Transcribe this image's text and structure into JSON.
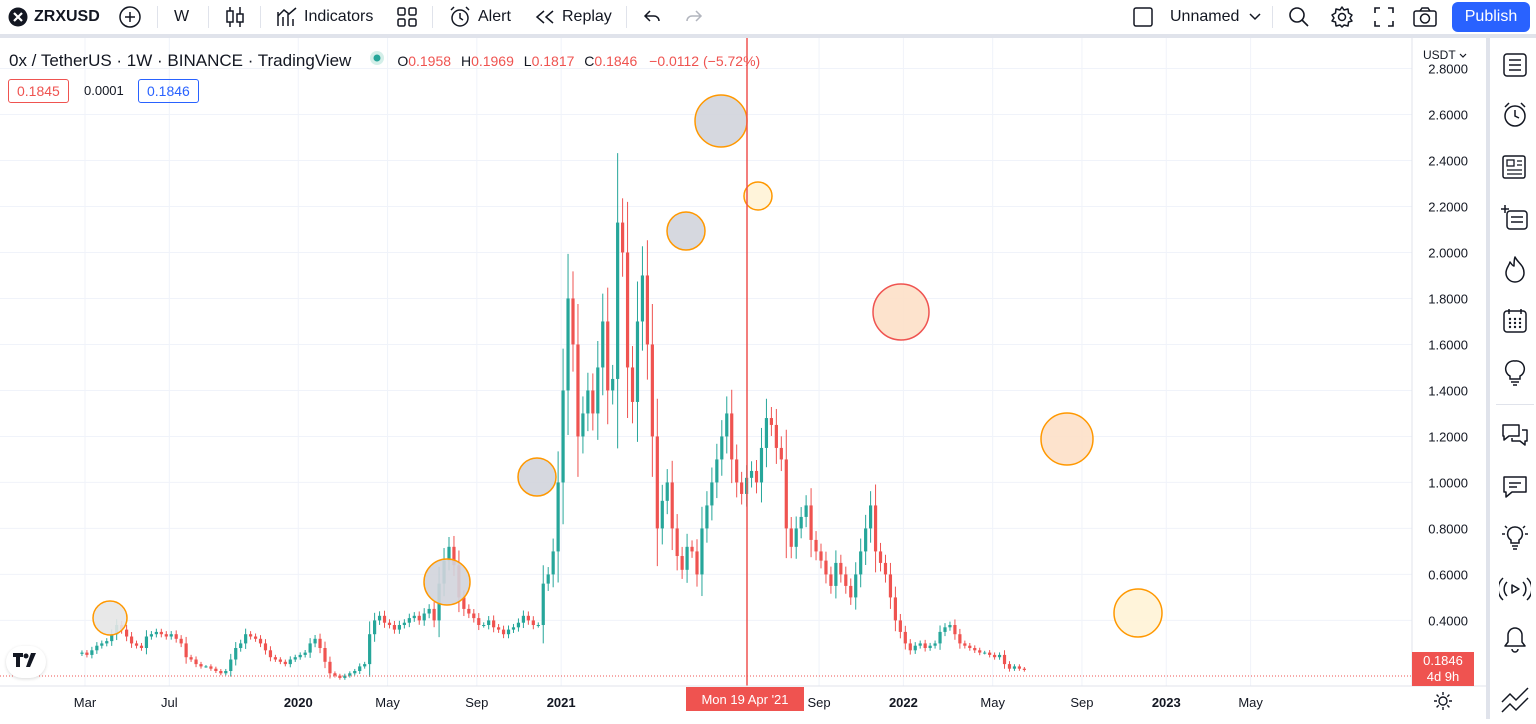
{
  "toolbar": {
    "symbol": "ZRXUSD",
    "interval": "W",
    "indicators_label": "Indicators",
    "alert_label": "Alert",
    "replay_label": "Replay",
    "layout_name": "Unnamed",
    "publish_label": "Publish"
  },
  "legend": {
    "title": "0x / TetherUS · 1W · BINANCE · TradingView",
    "open_label": "O",
    "open_value": "0.1958",
    "high_label": "H",
    "high_value": "0.1969",
    "low_label": "L",
    "low_value": "0.1817",
    "close_label": "C",
    "close_value": "0.1846",
    "change": "−0.0112 (−5.72%)",
    "bid": "0.1845",
    "spread": "0.0001",
    "ask": "0.1846"
  },
  "price_axis": {
    "currency": "USDT",
    "last_price": "0.1846",
    "countdown": "4d 9h"
  },
  "colors": {
    "up": "#26a69a",
    "down": "#ef5350",
    "accent": "#2962ff",
    "circle_orange": "#ff9800",
    "circle_red": "#ef5350"
  },
  "chart_data": {
    "type": "candlestick",
    "title": "0x / TetherUS · 1W · BINANCE",
    "ylim": [
      0.15,
      2.85
    ],
    "yticks": [
      "0.4000",
      "0.6000",
      "0.8000",
      "1.0000",
      "1.2000",
      "1.4000",
      "1.6000",
      "1.8000",
      "2.0000",
      "2.2000",
      "2.4000",
      "2.6000",
      "2.8000"
    ],
    "xticks": [
      {
        "label": "Mar",
        "week": 0,
        "bold": false
      },
      {
        "label": "Jul",
        "week": 17,
        "bold": false
      },
      {
        "label": "2020",
        "week": 43,
        "bold": true
      },
      {
        "label": "May",
        "week": 61,
        "bold": false
      },
      {
        "label": "Sep",
        "week": 79,
        "bold": false
      },
      {
        "label": "2021",
        "week": 96,
        "bold": true
      },
      {
        "label": "Sep",
        "week": 148,
        "bold": false
      },
      {
        "label": "2022",
        "week": 165,
        "bold": true
      },
      {
        "label": "May",
        "week": 183,
        "bold": false
      },
      {
        "label": "Sep",
        "week": 201,
        "bold": false
      },
      {
        "label": "2023",
        "week": 218,
        "bold": true
      },
      {
        "label": "May",
        "week": 235,
        "bold": false
      }
    ],
    "crosshair": {
      "label": "Mon 19 Apr '21",
      "week": 111
    },
    "start_week_offset": 1,
    "candles_close": [
      0.26,
      0.25,
      0.27,
      0.29,
      0.3,
      0.31,
      0.34,
      0.38,
      0.36,
      0.33,
      0.3,
      0.29,
      0.28,
      0.33,
      0.34,
      0.35,
      0.34,
      0.33,
      0.34,
      0.32,
      0.3,
      0.24,
      0.23,
      0.21,
      0.2,
      0.2,
      0.19,
      0.18,
      0.17,
      0.18,
      0.23,
      0.28,
      0.3,
      0.34,
      0.33,
      0.32,
      0.3,
      0.27,
      0.24,
      0.23,
      0.22,
      0.21,
      0.23,
      0.24,
      0.25,
      0.26,
      0.3,
      0.32,
      0.28,
      0.22,
      0.17,
      0.16,
      0.15,
      0.16,
      0.17,
      0.18,
      0.2,
      0.21,
      0.34,
      0.4,
      0.42,
      0.39,
      0.38,
      0.36,
      0.38,
      0.39,
      0.41,
      0.42,
      0.4,
      0.43,
      0.45,
      0.4,
      0.56,
      0.66,
      0.72,
      0.64,
      0.5,
      0.45,
      0.43,
      0.41,
      0.38,
      0.38,
      0.4,
      0.37,
      0.36,
      0.34,
      0.36,
      0.37,
      0.39,
      0.42,
      0.4,
      0.38,
      0.38,
      0.56,
      0.6,
      0.7,
      1.0,
      1.4,
      1.8,
      1.6,
      1.2,
      1.3,
      1.4,
      1.3,
      1.5,
      1.7,
      1.4,
      1.45,
      2.13,
      2.0,
      1.5,
      1.35,
      1.7,
      1.9,
      1.6,
      1.2,
      0.8,
      0.92,
      1.0,
      0.8,
      0.68,
      0.62,
      0.72,
      0.7,
      0.6,
      0.8,
      0.9,
      1.0,
      1.1,
      1.2,
      1.3,
      1.1,
      1.0,
      0.95,
      1.02,
      1.05,
      1.0,
      1.15,
      1.28,
      1.25,
      1.15,
      1.1,
      0.8,
      0.72,
      0.8,
      0.85,
      0.9,
      0.75,
      0.7,
      0.66,
      0.6,
      0.55,
      0.65,
      0.6,
      0.55,
      0.5,
      0.6,
      0.7,
      0.8,
      0.9,
      0.7,
      0.65,
      0.6,
      0.5,
      0.4,
      0.35,
      0.3,
      0.27,
      0.29,
      0.3,
      0.28,
      0.29,
      0.3,
      0.35,
      0.37,
      0.38,
      0.34,
      0.3,
      0.29,
      0.28,
      0.27,
      0.26,
      0.26,
      0.25,
      0.24,
      0.25,
      0.21,
      0.19,
      0.2,
      0.19,
      0.1846
    ]
  }
}
